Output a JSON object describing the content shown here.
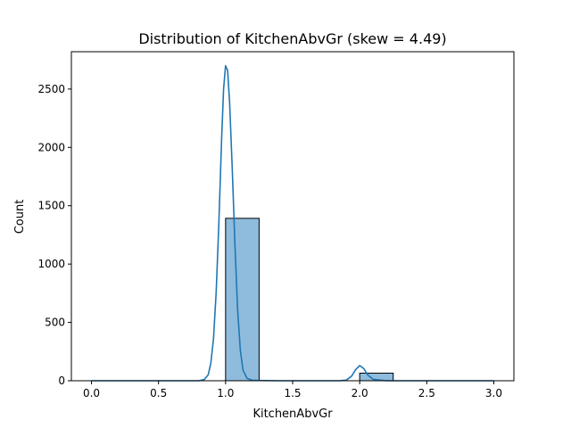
{
  "chart_data": {
    "type": "bar",
    "title": "Distribution of KitchenAbvGr (skew = 4.49)",
    "xlabel": "KitchenAbvGr",
    "ylabel": "Count",
    "xlim": [
      -0.15,
      3.15
    ],
    "ylim": [
      0,
      2820
    ],
    "xticks": [
      0.0,
      0.5,
      1.0,
      1.5,
      2.0,
      2.5,
      3.0
    ],
    "xtick_labels": [
      "0.0",
      "0.5",
      "1.0",
      "1.5",
      "2.0",
      "2.5",
      "3.0"
    ],
    "yticks": [
      0,
      500,
      1000,
      1500,
      2000,
      2500
    ],
    "ytick_labels": [
      "0",
      "500",
      "1000",
      "1500",
      "2000",
      "2500"
    ],
    "bins": [
      {
        "x0": 1.0,
        "x1": 1.25,
        "count": 1392
      },
      {
        "x0": 2.0,
        "x1": 2.25,
        "count": 65
      }
    ],
    "kde": [
      [
        0.0,
        0
      ],
      [
        0.5,
        0
      ],
      [
        0.8,
        0
      ],
      [
        0.84,
        10
      ],
      [
        0.87,
        50
      ],
      [
        0.89,
        150
      ],
      [
        0.91,
        360
      ],
      [
        0.93,
        760
      ],
      [
        0.95,
        1350
      ],
      [
        0.97,
        2050
      ],
      [
        0.985,
        2500
      ],
      [
        1.0,
        2700
      ],
      [
        1.015,
        2660
      ],
      [
        1.03,
        2380
      ],
      [
        1.05,
        1800
      ],
      [
        1.07,
        1150
      ],
      [
        1.09,
        600
      ],
      [
        1.11,
        260
      ],
      [
        1.13,
        90
      ],
      [
        1.16,
        20
      ],
      [
        1.2,
        3
      ],
      [
        1.4,
        0
      ],
      [
        1.85,
        0
      ],
      [
        1.9,
        5
      ],
      [
        1.94,
        40
      ],
      [
        1.97,
        95
      ],
      [
        2.0,
        130
      ],
      [
        2.03,
        105
      ],
      [
        2.06,
        50
      ],
      [
        2.1,
        12
      ],
      [
        2.2,
        0
      ],
      [
        3.0,
        0
      ]
    ],
    "grid": false,
    "colors": {
      "bar_fill": "#8fbcdc",
      "bar_edge": "#000000",
      "kde_line": "#1f77b4"
    }
  }
}
